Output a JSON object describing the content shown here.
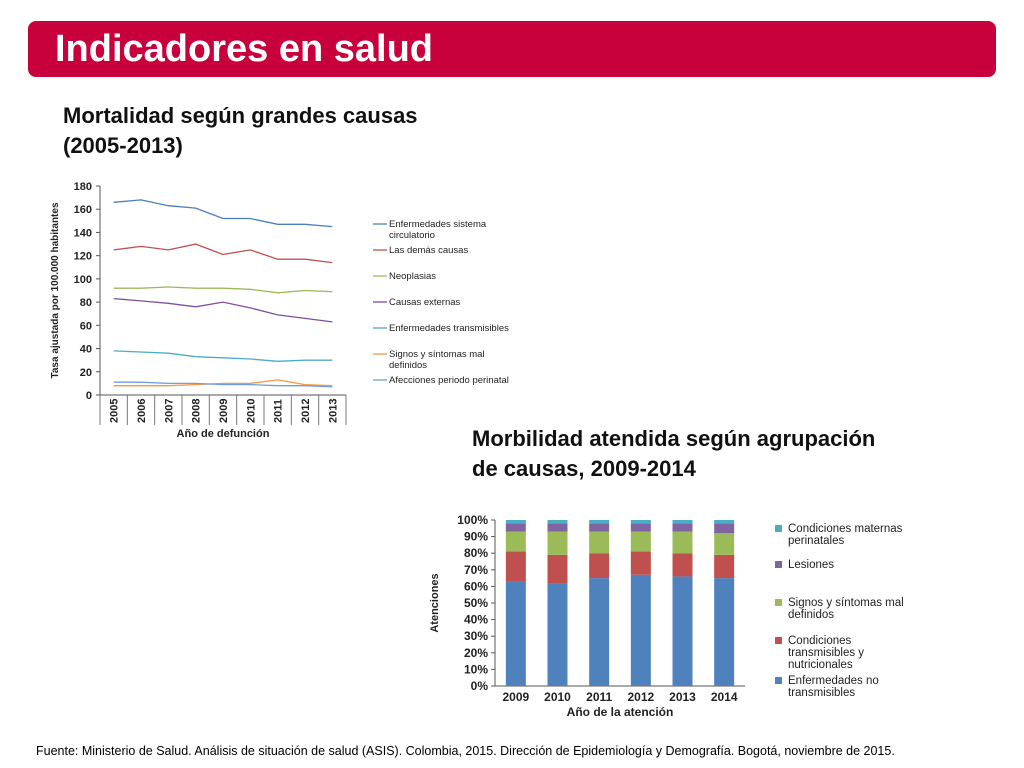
{
  "header": {
    "title": "Indicadores en salud"
  },
  "sections": {
    "mortalidad": {
      "title_lines": [
        "Mortalidad según grandes causas",
        "(2005-2013)"
      ]
    },
    "morbilidad": {
      "title_lines": [
        "Morbilidad atendida según agrupación",
        "de causas, 2009-2014"
      ]
    }
  },
  "footer": {
    "source": "Fuente: Ministerio de Salud.  Análisis de situación de salud (ASIS). Colombia, 2015. Dirección de Epidemiología y Demografía. Bogotá, noviembre de 2015."
  },
  "chart_data": [
    {
      "type": "line",
      "xlabel": "Año de defunción",
      "ylabel": "Tasa ajustada por 100.000 habitantes",
      "x": [
        "2005",
        "2006",
        "2007",
        "2008",
        "2009",
        "2010",
        "2011",
        "2012",
        "2013"
      ],
      "ylim": [
        0,
        180
      ],
      "yticks": [
        0,
        20,
        40,
        60,
        80,
        100,
        120,
        140,
        160,
        180
      ],
      "grid": false,
      "legend_position": "right",
      "series": [
        {
          "name": "Enfermedades sistema circulatorio",
          "label_lines": [
            "Enfermedades sistema",
            "circulatorio"
          ],
          "color": "#4a7ebb",
          "values": [
            166,
            168,
            163,
            161,
            152,
            152,
            147,
            147,
            145
          ]
        },
        {
          "name": "Las demás causas",
          "label_lines": [
            "Las demás causas"
          ],
          "color": "#c0504d",
          "values": [
            125,
            128,
            125,
            130,
            121,
            125,
            117,
            117,
            114
          ]
        },
        {
          "name": "Neoplasias",
          "label_lines": [
            "Neoplasias"
          ],
          "color": "#9bbb59",
          "values": [
            92,
            92,
            93,
            92,
            92,
            91,
            88,
            90,
            89
          ]
        },
        {
          "name": "Causas externas",
          "label_lines": [
            "Causas externas"
          ],
          "color": "#7f4f9f",
          "values": [
            83,
            81,
            79,
            76,
            80,
            75,
            69,
            66,
            63
          ]
        },
        {
          "name": "Enfermedades transmisibles",
          "label_lines": [
            "Enfermedades transmisibles"
          ],
          "color": "#4bacc6",
          "values": [
            38,
            37,
            36,
            33,
            32,
            31,
            29,
            30,
            30
          ]
        },
        {
          "name": "Signos y síntomas mal definidos",
          "label_lines": [
            "Signos y síntomas mal",
            "definidos"
          ],
          "color": "#f79646",
          "values": [
            8,
            8,
            8,
            9,
            10,
            10,
            13,
            9,
            8
          ]
        },
        {
          "name": "Afecciones periodo perinatal",
          "label_lines": [
            "Afecciones periodo perinatal"
          ],
          "color": "#6f9fd8",
          "values": [
            11,
            11,
            10,
            10,
            9,
            9,
            8,
            8,
            7
          ]
        }
      ]
    },
    {
      "type": "bar",
      "stacked": true,
      "xlabel": "Año de la atención",
      "ylabel": "Atenciones",
      "categories": [
        "2009",
        "2010",
        "2011",
        "2012",
        "2013",
        "2014"
      ],
      "ylim": [
        0,
        100
      ],
      "yticks": [
        "0%",
        "10%",
        "20%",
        "30%",
        "40%",
        "50%",
        "60%",
        "70%",
        "80%",
        "90%",
        "100%"
      ],
      "legend_position": "right",
      "series": [
        {
          "name": "Enfermedades no transmisibles",
          "label_lines": [
            "Enfermedades no",
            "transmisibles"
          ],
          "color": "#4f81bd",
          "values": [
            63,
            62,
            65,
            67,
            66,
            65
          ]
        },
        {
          "name": "Condiciones transmisibles y nutricionales",
          "label_lines": [
            "Condiciones",
            "transmisibles y",
            "nutricionales"
          ],
          "color": "#c0504d",
          "values": [
            18,
            17,
            15,
            14,
            14,
            14
          ]
        },
        {
          "name": "Signos y síntomas mal definidos",
          "label_lines": [
            "Signos y síntomas mal",
            "definidos"
          ],
          "color": "#9bbb59",
          "values": [
            12,
            14,
            13,
            12,
            13,
            13
          ]
        },
        {
          "name": "Lesiones",
          "label_lines": [
            "Lesiones"
          ],
          "color": "#8064a2",
          "values": [
            5,
            5,
            5,
            5,
            5,
            6
          ]
        },
        {
          "name": "Condiciones maternas perinatales",
          "label_lines": [
            "Condiciones maternas",
            "perinatales"
          ],
          "color": "#4bacc6",
          "values": [
            2,
            2,
            2,
            2,
            2,
            2
          ]
        }
      ]
    }
  ]
}
